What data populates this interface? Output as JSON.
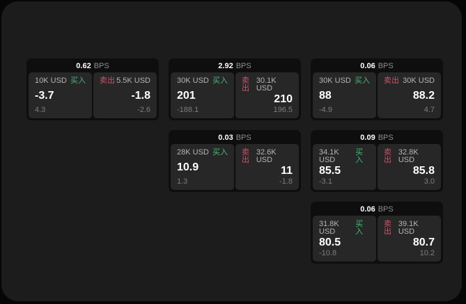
{
  "labels": {
    "buy_tag": "买入",
    "sell_tag": "卖出",
    "bps_unit": "BPS"
  },
  "colors": {
    "background": "#060606",
    "panel": "#1c1c1c",
    "card": "#0e0e0e",
    "tile": "#272727",
    "buy_tag": "#46b877",
    "sell_tag": "#cf5268",
    "value_text": "#ffffff",
    "label_text": "#b4b6b8",
    "unit_text": "#8f8f8f",
    "muted_text": "#7d7d7d"
  },
  "cards": [
    {
      "col": 1,
      "row": 1,
      "bps": "0.62",
      "buy": {
        "amount": "10K USD",
        "price": "-3.7",
        "delta": "4.3"
      },
      "sell": {
        "amount": "5.5K USD",
        "price": "-1.8",
        "delta": "-2.6"
      }
    },
    {
      "col": 2,
      "row": 1,
      "bps": "2.92",
      "buy": {
        "amount": "30K USD",
        "price": "201",
        "delta": "-188.1"
      },
      "sell": {
        "amount": "30.1K USD",
        "price": "210",
        "delta": "196.5"
      }
    },
    {
      "col": 3,
      "row": 1,
      "bps": "0.06",
      "buy": {
        "amount": "30K USD",
        "price": "88",
        "delta": "-4.9"
      },
      "sell": {
        "amount": "30K USD",
        "price": "88.2",
        "delta": "4.7"
      }
    },
    {
      "col": 2,
      "row": 2,
      "bps": "0.03",
      "buy": {
        "amount": "28K USD",
        "price": "10.9",
        "delta": "1.3"
      },
      "sell": {
        "amount": "32.6K USD",
        "price": "11",
        "delta": "-1.8"
      }
    },
    {
      "col": 3,
      "row": 2,
      "bps": "0.09",
      "buy": {
        "amount": "34.1K USD",
        "price": "85.5",
        "delta": "-3.1"
      },
      "sell": {
        "amount": "32.8K USD",
        "price": "85.8",
        "delta": "3.0"
      }
    },
    {
      "col": 3,
      "row": 3,
      "bps": "0.06",
      "buy": {
        "amount": "31.8K USD",
        "price": "80.5",
        "delta": "-10.8"
      },
      "sell": {
        "amount": "39.1K USD",
        "price": "80.7",
        "delta": "10.2"
      }
    }
  ]
}
